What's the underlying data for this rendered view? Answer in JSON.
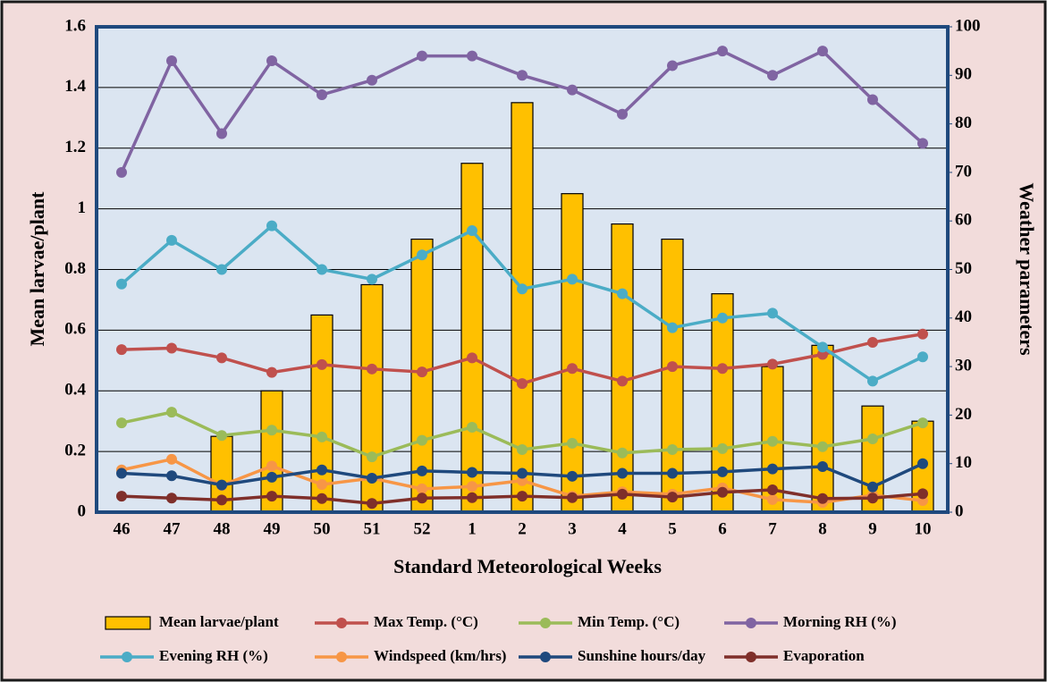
{
  "chart_data": {
    "type": "bar",
    "x_label": "Standard Meteorological Weeks",
    "y_label": "Mean larvae/plant",
    "y2_label": "Weather parameters",
    "categories": [
      "46",
      "47",
      "48",
      "49",
      "50",
      "51",
      "52",
      "1",
      "2",
      "3",
      "4",
      "5",
      "6",
      "7",
      "8",
      "9",
      "10"
    ],
    "ylim": [
      0,
      1.6
    ],
    "yticks": [
      0,
      0.2,
      0.4,
      0.6,
      0.8,
      1,
      1.2,
      1.4,
      1.6
    ],
    "y2lim": [
      0,
      100
    ],
    "y2ticks": [
      0,
      10,
      20,
      30,
      40,
      50,
      60,
      70,
      80,
      90,
      100
    ],
    "grid": true,
    "legend": "bottom",
    "series": [
      {
        "name": "Mean larvae/plant",
        "type": "bar",
        "color": "#ffc000",
        "values": [
          0,
          0,
          0.25,
          0.4,
          0.65,
          0.75,
          0.9,
          1.15,
          1.35,
          1.05,
          0.95,
          0.9,
          0.72,
          0.48,
          0.55,
          0.35,
          0.3
        ]
      },
      {
        "name": "Max Temp. (°C)",
        "type": "line",
        "axis": "y2",
        "color": "#c0504d",
        "values": [
          33.5,
          33.8,
          31.8,
          28.8,
          30.4,
          29.5,
          28.9,
          31.8,
          26.5,
          29.6,
          27,
          30,
          29.6,
          30.5,
          32.5,
          35,
          36.7
        ]
      },
      {
        "name": "Min Temp. (°C)",
        "type": "line",
        "axis": "y2",
        "color": "#9bbb59",
        "values": [
          18.4,
          20.6,
          15.8,
          16.9,
          15.5,
          11.4,
          14.8,
          17.5,
          12.9,
          14.2,
          12.2,
          12.9,
          13.1,
          14.6,
          13.5,
          15.1,
          18.4
        ]
      },
      {
        "name": "Morning RH (%)",
        "type": "line",
        "axis": "y2",
        "color": "#8064a2",
        "values": [
          70,
          93,
          78,
          93,
          86,
          89,
          94,
          94,
          90,
          87,
          82,
          92,
          95,
          90,
          95,
          85,
          76
        ]
      },
      {
        "name": "Evening RH (%)",
        "type": "line",
        "axis": "y2",
        "color": "#4bacc6",
        "values": [
          47,
          56,
          50,
          59,
          50,
          48,
          53,
          58,
          46,
          48,
          45,
          38,
          40,
          41,
          34,
          27,
          32
        ]
      },
      {
        "name": "Windspeed (km/hrs)",
        "type": "line",
        "axis": "y2",
        "color": "#f79646",
        "values": [
          8.7,
          10.9,
          5.5,
          9.5,
          5.7,
          7,
          4.8,
          5.3,
          6.5,
          3.3,
          4.2,
          3.7,
          5,
          2.6,
          2,
          3.5,
          2.4
        ]
      },
      {
        "name": "Sunshine hours/day",
        "type": "line",
        "axis": "y2",
        "color": "#1f497d",
        "values": [
          8,
          7.5,
          5.6,
          7.2,
          8.7,
          7,
          8.5,
          8.2,
          8,
          7.4,
          8,
          8,
          8.3,
          8.9,
          9.4,
          5.2,
          10
        ]
      },
      {
        "name": "Evaporation",
        "type": "line",
        "axis": "y2",
        "color": "#7f2f2a",
        "values": [
          3.3,
          2.9,
          2.5,
          3.3,
          2.8,
          1.8,
          2.9,
          3,
          3.3,
          3,
          3.7,
          3.1,
          4.1,
          4.6,
          2.8,
          2.9,
          3.8
        ]
      }
    ]
  }
}
